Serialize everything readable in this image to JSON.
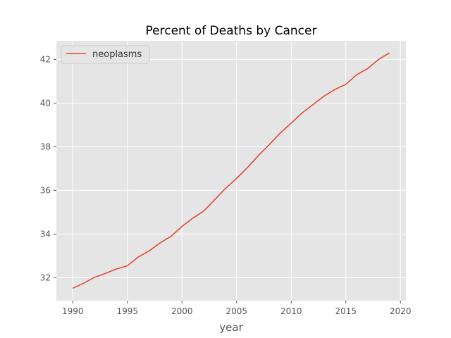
{
  "chart_data": {
    "type": "line",
    "title": "Percent of Deaths by Cancer",
    "xlabel": "year",
    "ylabel": "",
    "xlim": [
      1988.5,
      2020.5
    ],
    "ylim": [
      30.95,
      42.85
    ],
    "x_ticks": [
      "1990",
      "1995",
      "2000",
      "2005",
      "2010",
      "2015",
      "2020"
    ],
    "y_ticks": [
      "32",
      "34",
      "36",
      "38",
      "40",
      "42"
    ],
    "grid": true,
    "legend": "top-left",
    "style": "ggplot",
    "colors": {
      "background": "#E5E5E5",
      "grid": "#FFFFFF",
      "line": "#E24A33"
    },
    "series": [
      {
        "name": "neoplasms",
        "x": [
          1990,
          1991,
          1992,
          1993,
          1994,
          1995,
          1996,
          1997,
          1998,
          1999,
          2000,
          2001,
          2002,
          2003,
          2004,
          2005,
          2006,
          2007,
          2008,
          2009,
          2010,
          2011,
          2012,
          2013,
          2014,
          2015,
          2016,
          2017,
          2018,
          2019
        ],
        "y": [
          31.52,
          31.75,
          32.02,
          32.2,
          32.4,
          32.55,
          32.95,
          33.23,
          33.6,
          33.9,
          34.35,
          34.73,
          35.06,
          35.58,
          36.1,
          36.55,
          37.05,
          37.6,
          38.1,
          38.63,
          39.08,
          39.55,
          39.93,
          40.32,
          40.62,
          40.86,
          41.3,
          41.58,
          42.0,
          42.3
        ]
      }
    ]
  }
}
